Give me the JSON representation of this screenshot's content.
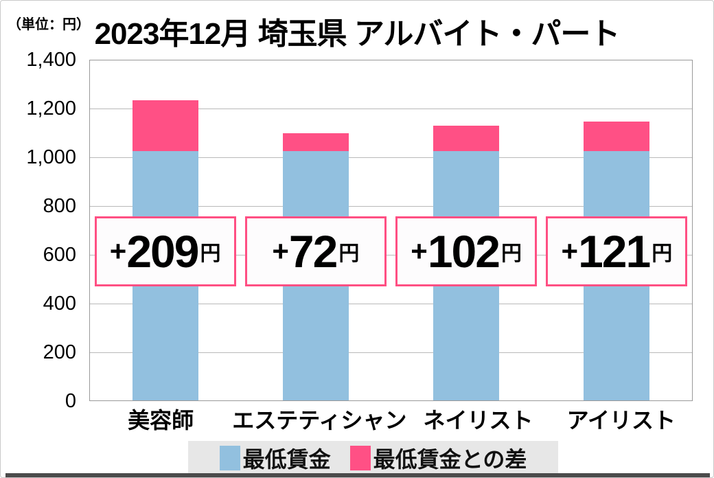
{
  "header": {
    "unit_label": "（単位：円）",
    "title": "2023年12月 埼玉県 アルバイト・パート"
  },
  "chart_data": {
    "type": "bar",
    "stacked": true,
    "title": "2023年12月 埼玉県 アルバイト・パート",
    "unit": "円",
    "ylim": [
      0,
      1400
    ],
    "ytick_interval": 200,
    "yticks": [
      "1,400",
      "1,200",
      "1,000",
      "800",
      "600",
      "400",
      "200",
      "0"
    ],
    "grid": true,
    "legend_position": "bottom",
    "categories": [
      "美容師",
      "エステティシャン",
      "ネイリスト",
      "アイリスト"
    ],
    "series": [
      {
        "name": "最低賃金",
        "color": "#92c0df",
        "values": [
          1028,
          1028,
          1028,
          1028
        ]
      },
      {
        "name": "最低賃金との差",
        "color": "#ff5085",
        "values": [
          209,
          72,
          102,
          121
        ]
      }
    ],
    "bar_totals": [
      1237,
      1100,
      1130,
      1149
    ],
    "diff_labels": [
      {
        "sign": "+",
        "value": "209",
        "unit": "円"
      },
      {
        "sign": "+",
        "value": "72",
        "unit": "円"
      },
      {
        "sign": "+",
        "value": "102",
        "unit": "円"
      },
      {
        "sign": "+",
        "value": "121",
        "unit": "円"
      }
    ]
  },
  "legend": {
    "items": [
      {
        "label": "最低賃金",
        "color": "#92c0df"
      },
      {
        "label": "最低賃金との差",
        "color": "#ff5085"
      }
    ]
  },
  "colors": {
    "bar_blue": "#92c0df",
    "bar_pink": "#ff5085",
    "box_border": "#ff4f83",
    "box_bg": "#fdfcfd",
    "grid_line": "#b9b9b9",
    "plot_frame": "#999999",
    "legend_bg": "#e7e7e7",
    "bottom_bar": "#4b4b4b"
  }
}
